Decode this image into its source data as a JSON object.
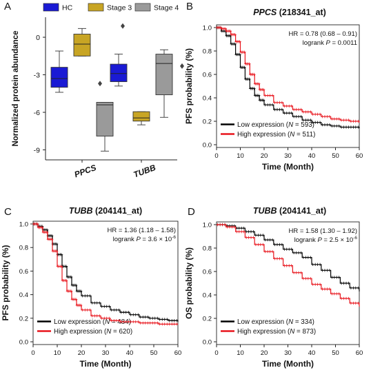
{
  "chart_data": [
    {
      "panel_letter": "A",
      "type": "box",
      "ylabel": "Normalized protein abundance",
      "yticks": [
        0,
        -3,
        -6,
        -9
      ],
      "ylim": [
        -9.8,
        1.6
      ],
      "categories": [
        "PPCS",
        "TUBB"
      ],
      "legend_placement": "top",
      "series": [
        {
          "name": "HC",
          "color": "#1a1ad4",
          "boxes": [
            {
              "whisker_low": -4.4,
              "q1": -4.0,
              "median": -3.3,
              "q3": -2.4,
              "whisker_high": -1.1,
              "outliers": []
            },
            {
              "whisker_low": -3.9,
              "q1": -3.55,
              "median": -2.9,
              "q3": -2.15,
              "whisker_high": -1.35,
              "outliers": []
            }
          ]
        },
        {
          "name": "Stage 3",
          "color": "#c8a524",
          "boxes": [
            {
              "whisker_low": -1.5,
              "q1": -1.5,
              "median": -0.55,
              "q3": 0.25,
              "whisker_high": 0.7,
              "outliers": [
                -3.7
              ]
            },
            {
              "whisker_low": -7.0,
              "q1": -6.7,
              "median": -6.45,
              "q3": -5.95,
              "whisker_high": -5.95,
              "outliers": []
            }
          ]
        },
        {
          "name": "Stage 4",
          "color": "#9a9a9a",
          "boxes": [
            {
              "whisker_low": -9.1,
              "q1": -7.9,
              "median": -5.4,
              "q3": -5.2,
              "whisker_high": -5.2,
              "outliers": [
                0.9
              ]
            },
            {
              "whisker_low": -6.4,
              "q1": -4.6,
              "median": -2.1,
              "q3": -1.35,
              "whisker_high": -1.0,
              "outliers": [
                -2.3
              ]
            }
          ]
        }
      ]
    },
    {
      "panel_letter": "B",
      "type": "line",
      "title_gene": "PPCS",
      "title_probe": "(218341_at)",
      "xlabel": "Time (Month)",
      "ylabel": "PFS probability (%)",
      "xlim": [
        0,
        60
      ],
      "xticks": [
        0,
        10,
        20,
        30,
        40,
        50,
        60
      ],
      "ylim": [
        0,
        1
      ],
      "yticks": [
        "0.0",
        "0.2",
        "0.4",
        "0.6",
        "0.8",
        "1.0"
      ],
      "hr_text": "HR = 0.78 (0.68 – 0.91)",
      "logrank_prefix": "logrank",
      "logrank_p": "P",
      "logrank_value": " = 0.0011",
      "logrank_exp": "",
      "series": [
        {
          "name_prefix": "Low expression (",
          "n_label": "N",
          "n_value": " = 593)",
          "color": "#000000",
          "x": [
            0,
            2,
            4,
            6,
            8,
            10,
            12,
            14,
            16,
            18,
            20,
            24,
            28,
            32,
            36,
            40,
            44,
            48,
            52,
            56,
            60
          ],
          "y": [
            1.0,
            0.97,
            0.93,
            0.86,
            0.77,
            0.66,
            0.56,
            0.48,
            0.42,
            0.38,
            0.34,
            0.3,
            0.27,
            0.24,
            0.21,
            0.19,
            0.17,
            0.16,
            0.15,
            0.15,
            0.14
          ]
        },
        {
          "name_prefix": "High expression (",
          "n_label": "N",
          "n_value": " = 511)",
          "color": "#e8141c",
          "x": [
            0,
            2,
            4,
            6,
            8,
            10,
            12,
            14,
            16,
            18,
            20,
            24,
            28,
            32,
            36,
            40,
            44,
            48,
            52,
            56,
            60
          ],
          "y": [
            1.0,
            0.99,
            0.97,
            0.94,
            0.88,
            0.79,
            0.69,
            0.6,
            0.52,
            0.47,
            0.42,
            0.36,
            0.33,
            0.3,
            0.28,
            0.26,
            0.24,
            0.22,
            0.21,
            0.2,
            0.19
          ]
        }
      ]
    },
    {
      "panel_letter": "C",
      "type": "line",
      "title_gene": "TUBB",
      "title_probe": "(204141_at)",
      "xlabel": "Time (Month)",
      "ylabel": "PFS probability (%)",
      "xlim": [
        0,
        60
      ],
      "xticks": [
        0,
        10,
        20,
        30,
        40,
        50,
        60
      ],
      "ylim": [
        0,
        1
      ],
      "yticks": [
        "0.0",
        "0.2",
        "0.4",
        "0.6",
        "0.8",
        "1.0"
      ],
      "hr_text": "HR = 1.36 (1.18 – 1.58)",
      "logrank_prefix": "logrank",
      "logrank_p": "P",
      "logrank_value": " = 3.6 × 10",
      "logrank_exp": "-6",
      "series": [
        {
          "name_prefix": "Low expression (",
          "n_label": "N",
          "n_value": " = 484)",
          "color": "#000000",
          "x": [
            0,
            2,
            4,
            6,
            8,
            10,
            12,
            14,
            16,
            18,
            20,
            24,
            28,
            32,
            36,
            40,
            44,
            48,
            52,
            56,
            60
          ],
          "y": [
            1.0,
            0.98,
            0.95,
            0.9,
            0.83,
            0.74,
            0.64,
            0.55,
            0.48,
            0.43,
            0.39,
            0.33,
            0.3,
            0.27,
            0.25,
            0.23,
            0.21,
            0.2,
            0.19,
            0.18,
            0.17
          ]
        },
        {
          "name_prefix": "High expression (",
          "n_label": "N",
          "n_value": " = 620)",
          "color": "#e8141c",
          "x": [
            0,
            2,
            4,
            6,
            8,
            10,
            12,
            14,
            16,
            18,
            20,
            24,
            28,
            32,
            36,
            40,
            44,
            48,
            52,
            56,
            60
          ],
          "y": [
            1.0,
            0.97,
            0.93,
            0.87,
            0.77,
            0.64,
            0.52,
            0.43,
            0.36,
            0.31,
            0.27,
            0.22,
            0.2,
            0.18,
            0.17,
            0.17,
            0.16,
            0.16,
            0.15,
            0.15,
            0.15
          ]
        }
      ]
    },
    {
      "panel_letter": "D",
      "type": "line",
      "title_gene": "TUBB",
      "title_probe": "(204141_at)",
      "xlabel": "Time (Month)",
      "ylabel": "OS probability (%)",
      "xlim": [
        0,
        60
      ],
      "xticks": [
        0,
        10,
        20,
        30,
        40,
        50,
        60
      ],
      "ylim": [
        0,
        1
      ],
      "yticks": [
        "0.0",
        "0.2",
        "0.4",
        "0.6",
        "0.8",
        "1.0"
      ],
      "hr_text": "HR = 1.58 (1.30 – 1.92)",
      "logrank_prefix": "logrank",
      "logrank_p": "P",
      "logrank_value": " = 2.5 × 10",
      "logrank_exp": "-6",
      "series": [
        {
          "name_prefix": "Low expression (",
          "n_label": "N",
          "n_value": " = 334)",
          "color": "#000000",
          "x": [
            0,
            4,
            8,
            12,
            16,
            20,
            24,
            28,
            32,
            36,
            40,
            44,
            48,
            52,
            56,
            60
          ],
          "y": [
            1.0,
            0.99,
            0.97,
            0.94,
            0.91,
            0.87,
            0.83,
            0.79,
            0.76,
            0.72,
            0.66,
            0.61,
            0.55,
            0.5,
            0.46,
            0.43
          ]
        },
        {
          "name_prefix": "High expression (",
          "n_label": "N",
          "n_value": " = 873)",
          "color": "#e8141c",
          "x": [
            0,
            4,
            8,
            12,
            16,
            20,
            24,
            28,
            32,
            36,
            40,
            44,
            48,
            52,
            56,
            60
          ],
          "y": [
            1.0,
            0.98,
            0.94,
            0.89,
            0.83,
            0.77,
            0.71,
            0.65,
            0.59,
            0.54,
            0.49,
            0.45,
            0.41,
            0.37,
            0.33,
            0.3
          ]
        }
      ]
    }
  ]
}
